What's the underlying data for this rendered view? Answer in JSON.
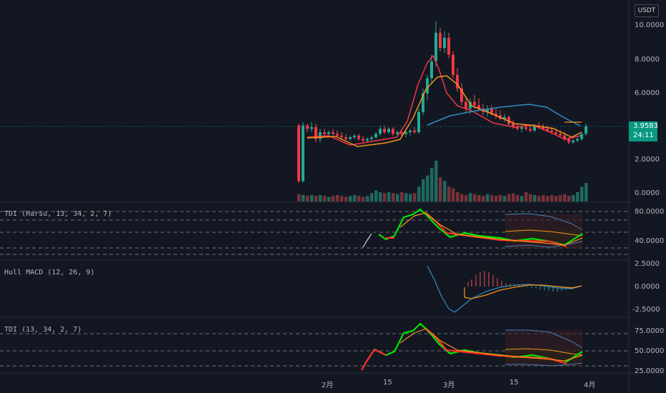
{
  "currency": "USDT",
  "last_price": "3.9583",
  "countdown": "24:11",
  "colors": {
    "background": "#131722",
    "up": "#26a69a",
    "down": "#ef5350",
    "ma_fast": "#f23645",
    "ma_slow": "#f7931a",
    "ma_long": "#2f8ec4",
    "tdi_green": "#00e600",
    "tdi_red": "#ff2a2a",
    "price_tag": "#089981"
  },
  "panes": {
    "main": {
      "ticks": [
        "10.0000",
        "8.0000",
        "6.0000",
        "2.0000",
        "0.0000"
      ]
    },
    "tdi1": {
      "title": "TDI (Harsu, 13, 34, 2, 7)",
      "ticks": [
        "80.0000",
        "40.0000"
      ]
    },
    "macd": {
      "title": "Hull MACD (12, 26, 9)",
      "ticks": [
        "2.5000",
        "0.0000",
        "-2.5000"
      ]
    },
    "tdi2": {
      "title": "TDI (13, 34, 2, 7)",
      "ticks": [
        "75.0000",
        "50.0000",
        "25.0000"
      ]
    }
  },
  "x_axis": {
    "labels": [
      "2月",
      "15",
      "3月",
      "15",
      "4月"
    ]
  },
  "chart_data": {
    "type": "candlestick",
    "y_range": [
      0,
      10.5
    ],
    "candles": [
      [
        4.0,
        4.1,
        0.6,
        0.7
      ],
      [
        0.7,
        4.2,
        0.6,
        4.0
      ],
      [
        4.0,
        4.1,
        3.6,
        3.8
      ],
      [
        3.8,
        4.2,
        3.6,
        3.9
      ],
      [
        3.9,
        4.1,
        3.0,
        3.2
      ],
      [
        3.2,
        3.8,
        3.0,
        3.6
      ],
      [
        3.6,
        3.8,
        3.3,
        3.5
      ],
      [
        3.5,
        3.7,
        3.3,
        3.6
      ],
      [
        3.6,
        3.8,
        3.4,
        3.5
      ],
      [
        3.5,
        3.7,
        3.3,
        3.4
      ],
      [
        3.4,
        3.6,
        3.2,
        3.3
      ],
      [
        3.3,
        3.5,
        3.1,
        3.2
      ],
      [
        3.2,
        3.4,
        3.1,
        3.3
      ],
      [
        3.3,
        3.5,
        3.2,
        3.4
      ],
      [
        3.4,
        3.5,
        3.1,
        3.2
      ],
      [
        3.2,
        3.4,
        3.0,
        3.1
      ],
      [
        3.1,
        3.3,
        3.0,
        3.2
      ],
      [
        3.2,
        3.4,
        3.1,
        3.3
      ],
      [
        3.3,
        3.6,
        3.2,
        3.5
      ],
      [
        3.5,
        4.0,
        3.4,
        3.8
      ],
      [
        3.8,
        4.0,
        3.5,
        3.6
      ],
      [
        3.6,
        3.9,
        3.5,
        3.8
      ],
      [
        3.8,
        3.9,
        3.4,
        3.5
      ],
      [
        3.5,
        3.7,
        3.3,
        3.6
      ],
      [
        3.6,
        3.8,
        3.4,
        3.5
      ],
      [
        3.5,
        3.7,
        3.3,
        3.6
      ],
      [
        3.6,
        3.8,
        3.4,
        3.7
      ],
      [
        3.7,
        3.9,
        3.5,
        3.6
      ],
      [
        3.6,
        5.0,
        3.5,
        4.8
      ],
      [
        4.8,
        6.2,
        4.6,
        5.9
      ],
      [
        5.9,
        7.0,
        5.5,
        6.8
      ],
      [
        6.8,
        8.2,
        6.5,
        7.8
      ],
      [
        7.8,
        10.2,
        7.5,
        9.5
      ],
      [
        9.5,
        9.8,
        8.4,
        8.6
      ],
      [
        8.6,
        9.6,
        8.3,
        9.2
      ],
      [
        9.2,
        9.5,
        8.0,
        8.2
      ],
      [
        8.2,
        8.4,
        6.8,
        7.0
      ],
      [
        7.0,
        7.4,
        6.0,
        6.2
      ],
      [
        6.2,
        6.5,
        5.2,
        5.4
      ],
      [
        5.4,
        5.7,
        4.8,
        5.0
      ],
      [
        5.0,
        5.6,
        4.7,
        5.4
      ],
      [
        5.4,
        5.8,
        5.0,
        5.2
      ],
      [
        5.2,
        5.6,
        4.9,
        5.0
      ],
      [
        5.0,
        5.3,
        4.6,
        4.8
      ],
      [
        4.8,
        5.2,
        4.5,
        5.0
      ],
      [
        5.0,
        5.2,
        4.6,
        4.7
      ],
      [
        4.7,
        5.0,
        4.4,
        4.6
      ],
      [
        4.6,
        4.9,
        4.3,
        4.4
      ],
      [
        4.4,
        4.7,
        4.2,
        4.5
      ],
      [
        4.5,
        4.6,
        4.0,
        4.1
      ],
      [
        4.1,
        4.3,
        3.8,
        3.9
      ],
      [
        3.9,
        4.1,
        3.7,
        3.8
      ],
      [
        3.8,
        4.0,
        3.6,
        3.9
      ],
      [
        3.9,
        4.1,
        3.7,
        3.8
      ],
      [
        3.8,
        4.0,
        3.6,
        3.7
      ],
      [
        3.7,
        4.1,
        3.6,
        4.0
      ],
      [
        4.0,
        4.2,
        3.8,
        3.9
      ],
      [
        3.9,
        4.1,
        3.7,
        3.8
      ],
      [
        3.8,
        4.0,
        3.6,
        3.7
      ],
      [
        3.7,
        3.9,
        3.5,
        3.6
      ],
      [
        3.6,
        3.8,
        3.4,
        3.5
      ],
      [
        3.5,
        3.7,
        3.3,
        3.4
      ],
      [
        3.4,
        3.6,
        3.1,
        3.2
      ],
      [
        3.2,
        3.3,
        2.9,
        3.0
      ],
      [
        3.0,
        3.2,
        2.9,
        3.1
      ],
      [
        3.1,
        3.3,
        3.0,
        3.2
      ],
      [
        3.2,
        3.6,
        3.1,
        3.5
      ],
      [
        3.5,
        4.1,
        3.4,
        3.96
      ]
    ],
    "volumes": [
      0.4,
      0.35,
      0.3,
      0.35,
      0.3,
      0.35,
      0.3,
      0.25,
      0.3,
      0.35,
      0.3,
      0.25,
      0.3,
      0.35,
      0.3,
      0.25,
      0.3,
      0.45,
      0.6,
      0.5,
      0.45,
      0.5,
      0.45,
      0.4,
      0.5,
      0.45,
      0.4,
      0.45,
      0.8,
      1.2,
      1.4,
      1.8,
      2.2,
      1.3,
      1.1,
      0.8,
      0.7,
      0.5,
      0.4,
      0.35,
      0.45,
      0.4,
      0.35,
      0.3,
      0.4,
      0.35,
      0.3,
      0.35,
      0.3,
      0.4,
      0.45,
      0.35,
      0.3,
      0.5,
      0.4,
      0.35,
      0.3,
      0.35,
      0.3,
      0.35,
      0.3,
      0.35,
      0.4,
      0.3,
      0.35,
      0.5,
      0.8,
      1.0
    ]
  }
}
